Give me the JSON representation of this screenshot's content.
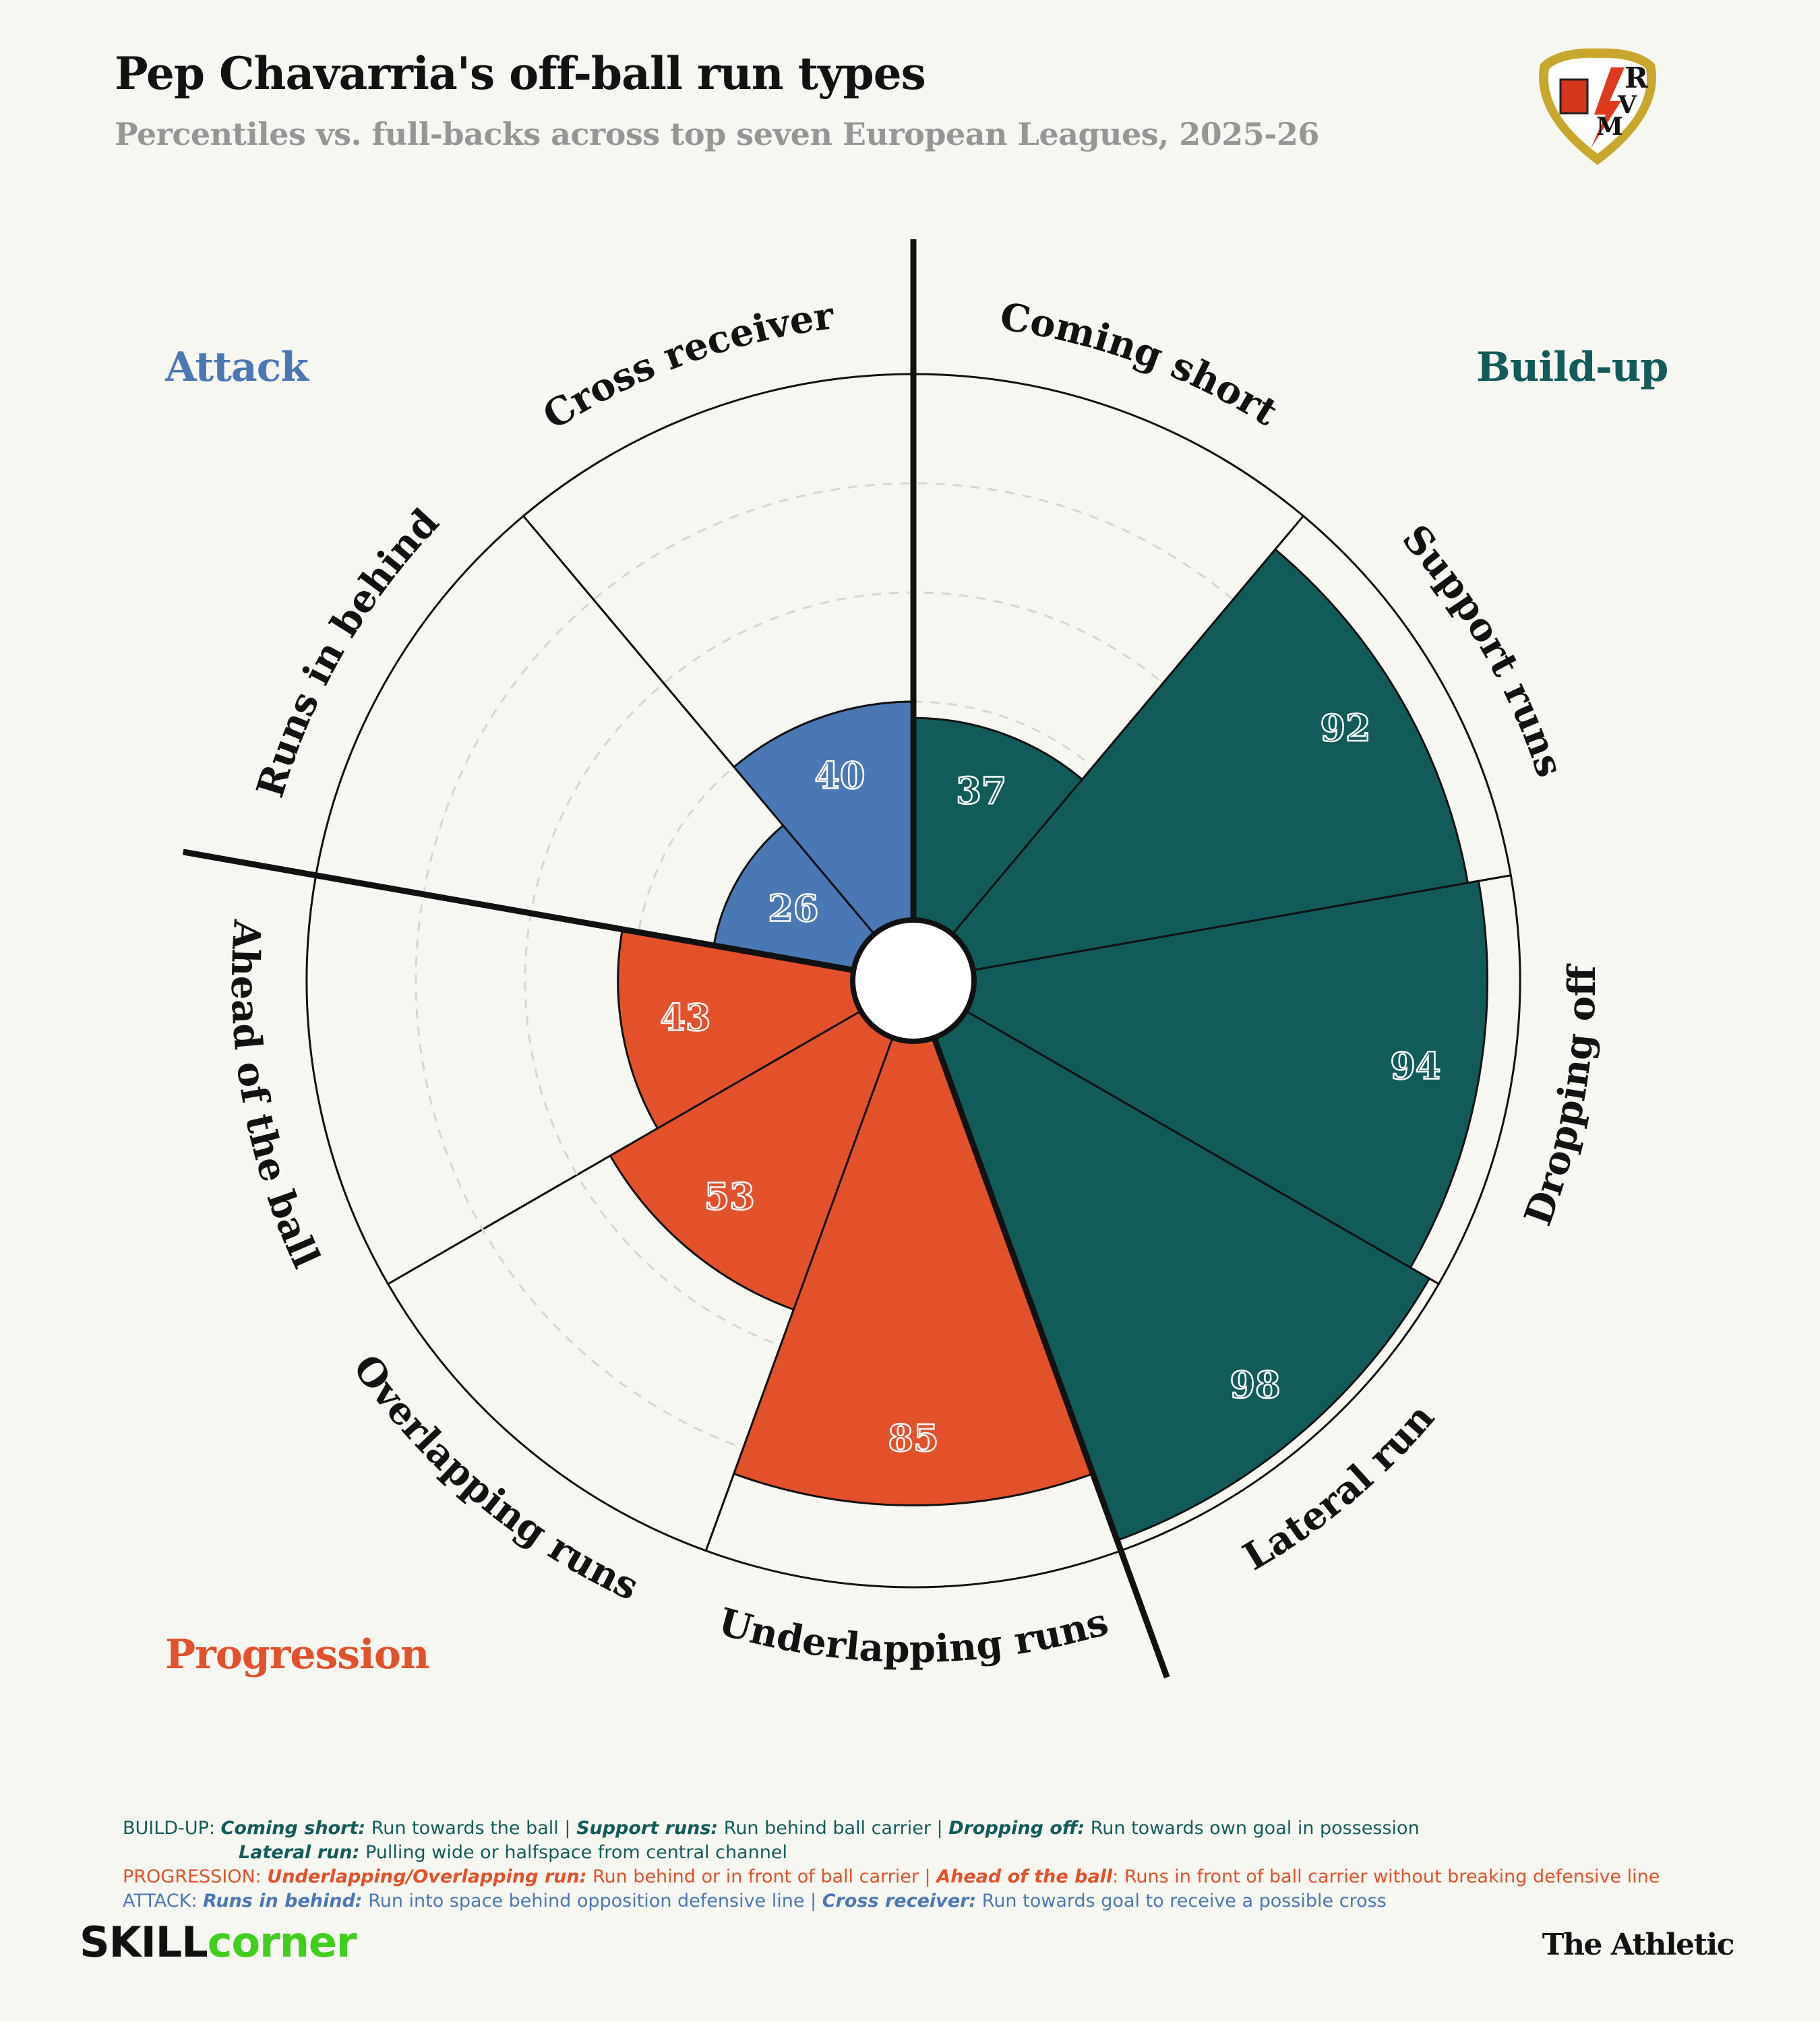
{
  "header": {
    "title": "Pep Chavarria's off-ball run types",
    "subtitle": "Percentiles vs. full-backs across top seven European Leagues, 2025-26"
  },
  "categories": {
    "attack": {
      "label": "Attack",
      "color": "#4a78b5"
    },
    "build_up": {
      "label": "Build-up",
      "color": "#115c5b"
    },
    "progression": {
      "label": "Progression",
      "color": "#e3512b"
    }
  },
  "crest": {
    "letters": [
      "R",
      "V",
      "M"
    ]
  },
  "chart_data": {
    "type": "radial-bar",
    "title": "Pep Chavarria's off-ball run types",
    "subtitle": "Percentiles vs. full-backs across top seven European Leagues, 2025-26",
    "rlim": [
      0,
      100
    ],
    "gridlines": [
      20,
      40,
      60,
      80
    ],
    "start_angle_deg": 0,
    "direction": "clockwise",
    "slices": [
      {
        "label": "Coming short",
        "value": 37,
        "group": "build_up"
      },
      {
        "label": "Support runs",
        "value": 92,
        "group": "build_up"
      },
      {
        "label": "Dropping off",
        "value": 94,
        "group": "build_up"
      },
      {
        "label": "Lateral run",
        "value": 98,
        "group": "build_up"
      },
      {
        "label": "Underlapping runs",
        "value": 85,
        "group": "progression"
      },
      {
        "label": "Overlapping runs",
        "value": 53,
        "group": "progression"
      },
      {
        "label": "Ahead of the ball",
        "value": 43,
        "group": "progression"
      },
      {
        "label": "Runs in behind",
        "value": 26,
        "group": "attack"
      },
      {
        "label": "Cross receiver",
        "value": 40,
        "group": "attack"
      }
    ]
  },
  "footer": {
    "build_up": {
      "prefix": "BUILD-UP: ",
      "t1": "Coming short:",
      "d1": " Run towards the ball | ",
      "t2": "Support runs:",
      "d2": " Run behind ball carrier | ",
      "t3": "Dropping off:",
      "d3": " Run towards own goal in possession",
      "t4": "Lateral run:",
      "d4": " Pulling wide or halfspace from central channel"
    },
    "progression": {
      "prefix": "PROGRESSION: ",
      "t1": "Underlapping/Overlapping run:",
      "d1": " Run behind or in front of ball carrier | ",
      "t2": "Ahead of the ball",
      "d2": ": Runs in front of ball carrier without breaking defensive line"
    },
    "attack": {
      "prefix": "ATTACK: ",
      "t1": "Runs in behind:",
      "d1": " Run into space behind opposition defensive line | ",
      "t2": "Cross receiver:",
      "d2": " Run towards goal to receive a possible cross"
    }
  },
  "branding": {
    "skill": "SKILL",
    "corner": "corner",
    "skill_color": "#111111",
    "corner_color": "#3fcf1c",
    "publisher": "The Athletic"
  }
}
